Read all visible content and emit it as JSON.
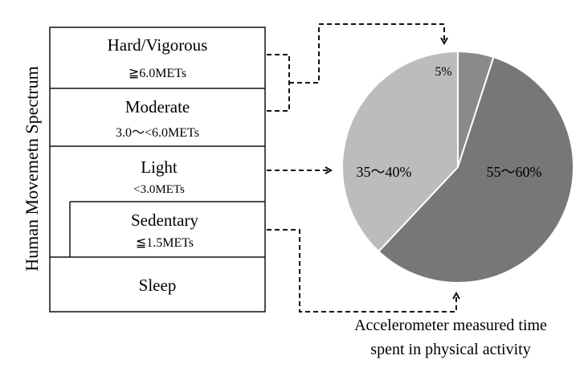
{
  "spectrum": {
    "axis_label": "Human Movemetn Spectrum",
    "levels": [
      {
        "name": "Hard/Vigorous",
        "criterion": "≧6.0METs"
      },
      {
        "name": "Moderate",
        "criterion": "3.0～<6.0METs"
      },
      {
        "name": "Light",
        "criterion": "<3.0METs"
      },
      {
        "name": "Sedentary",
        "criterion": "≦1.5METs"
      },
      {
        "name": "Sleep",
        "criterion": ""
      }
    ]
  },
  "pie": {
    "caption_line1": "Accelerometer measured time",
    "caption_line2": "spent in physical activity",
    "slices": [
      {
        "label": "5%",
        "share": 5,
        "color": "#8a8a8a"
      },
      {
        "label": "55～60%",
        "share": 57,
        "color": "#777777"
      },
      {
        "label": "35～40%",
        "share": 38,
        "color": "#bcbcbc"
      }
    ]
  }
}
